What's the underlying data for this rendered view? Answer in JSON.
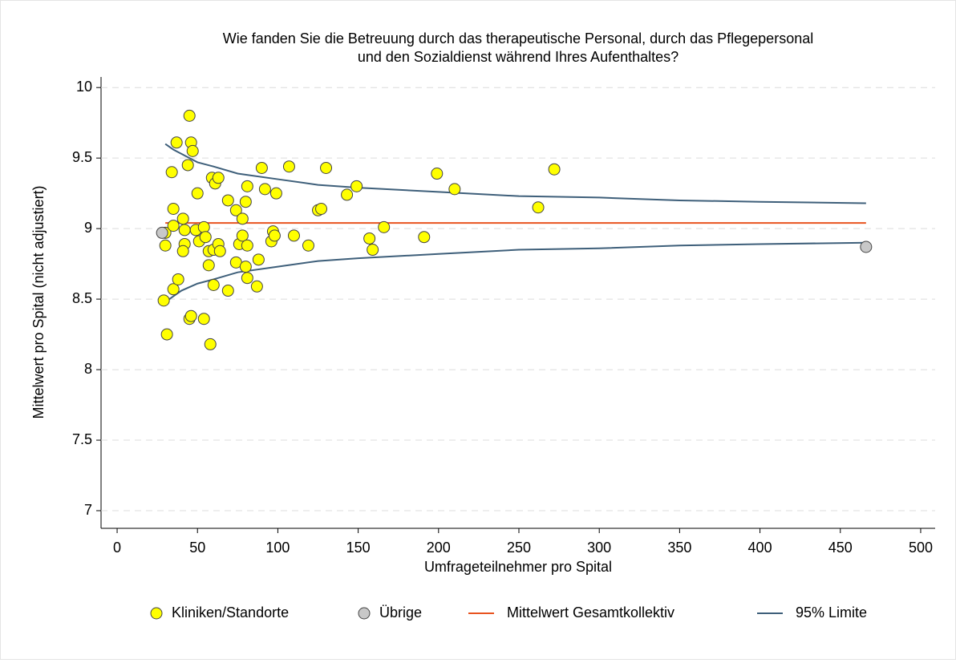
{
  "chart_data": {
    "type": "scatter",
    "title": [
      "Wie fanden Sie die Betreuung durch das therapeutische Personal, durch das Pflegepersonal",
      "und den Sozialdienst während Ihres Aufenthaltes?"
    ],
    "x_label": "Umfrageteilnehmer pro Spital",
    "y_label": "Mittelwert pro Spital (nicht adjustiert)",
    "xlim": [
      -10,
      509
    ],
    "ylim": [
      6.875,
      10.075
    ],
    "xticks": [
      0,
      50,
      100,
      150,
      200,
      250,
      300,
      350,
      400,
      450,
      500
    ],
    "yticks": [
      7,
      7.5,
      8,
      8.5,
      9,
      9.5,
      10
    ],
    "grid": true,
    "series": [
      {
        "name": "Kliniken/Standorte",
        "kind": "scatter",
        "color": "#ffff00",
        "x": [
          30,
          29,
          31,
          30,
          35,
          35,
          35,
          34,
          37,
          38,
          45,
          46,
          47,
          44,
          41,
          42,
          42,
          41,
          45,
          46,
          54,
          50,
          49,
          51,
          54,
          55,
          57,
          57,
          58,
          59,
          61,
          60,
          60,
          63,
          63,
          64,
          69,
          69,
          74,
          74,
          76,
          78,
          78,
          80,
          81,
          81,
          80,
          81,
          88,
          87,
          90,
          92,
          96,
          97,
          98,
          99,
          110,
          107,
          119,
          125,
          127,
          130,
          143,
          149,
          157,
          159,
          166,
          191,
          199,
          210,
          262,
          272
        ],
        "values": [
          8.97,
          8.49,
          8.25,
          8.88,
          8.57,
          9.02,
          9.14,
          9.4,
          9.61,
          8.64,
          9.8,
          9.61,
          9.55,
          9.45,
          9.07,
          8.99,
          8.89,
          8.84,
          8.36,
          8.38,
          8.36,
          9.25,
          8.99,
          8.91,
          9.01,
          8.94,
          8.74,
          8.84,
          8.18,
          9.36,
          9.32,
          8.6,
          8.85,
          9.36,
          8.89,
          8.84,
          9.2,
          8.56,
          9.13,
          8.76,
          8.89,
          9.07,
          8.95,
          9.19,
          9.3,
          8.88,
          8.73,
          8.65,
          8.78,
          8.59,
          9.43,
          9.28,
          8.91,
          8.98,
          8.95,
          9.25,
          8.95,
          9.44,
          8.88,
          9.13,
          9.14,
          9.43,
          9.24,
          9.3,
          8.93,
          8.85,
          9.01,
          8.94,
          9.39,
          9.28,
          9.15,
          9.42
        ]
      },
      {
        "name": "Übrige",
        "kind": "scatter",
        "color": "#c8c8c8",
        "x": [
          28,
          466
        ],
        "values": [
          8.97,
          8.87
        ]
      },
      {
        "name": "Mittelwert Gesamtkollektiv",
        "kind": "line",
        "color": "#e8531f",
        "x": [
          30,
          466
        ],
        "values": [
          9.04,
          9.04
        ]
      },
      {
        "name": "95% Limite",
        "kind": "band",
        "color": "#3e5f7a",
        "x": [
          30,
          35,
          40,
          50,
          60,
          75,
          100,
          125,
          150,
          200,
          250,
          300,
          350,
          400,
          466
        ],
        "upper": [
          9.6,
          9.56,
          9.53,
          9.47,
          9.44,
          9.39,
          9.35,
          9.31,
          9.29,
          9.26,
          9.23,
          9.22,
          9.2,
          9.19,
          9.18
        ],
        "lower": [
          8.48,
          8.52,
          8.56,
          8.61,
          8.64,
          8.69,
          8.73,
          8.77,
          8.79,
          8.82,
          8.85,
          8.86,
          8.88,
          8.89,
          8.9
        ]
      }
    ]
  }
}
